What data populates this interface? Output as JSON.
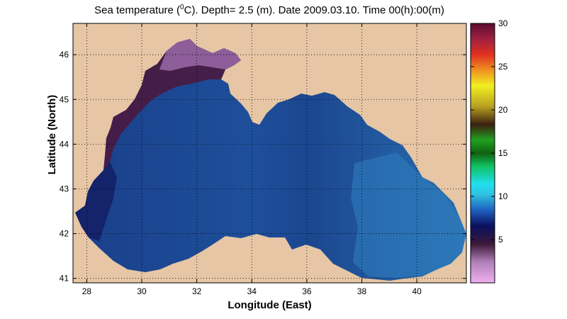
{
  "title": {
    "prefix": "Sea temperature (",
    "sup": "0",
    "suffix": "C). Depth=  2.5 (m). Date 2009.03.10. Time 00(h):00(m)"
  },
  "axes": {
    "xlabel": "Longitude (East)",
    "ylabel": "Latitude (North)",
    "x_ticks": [
      "28",
      "30",
      "32",
      "34",
      "36",
      "38",
      "40"
    ],
    "x_tick_values": [
      28,
      30,
      32,
      34,
      36,
      38,
      40
    ],
    "y_ticks": [
      "41",
      "42",
      "43",
      "44",
      "45",
      "46"
    ],
    "y_tick_values": [
      41,
      42,
      43,
      44,
      45,
      46
    ],
    "xlim": [
      27.5,
      41.8
    ],
    "ylim": [
      40.9,
      46.7
    ],
    "grid": "dotted"
  },
  "colorbar": {
    "ticks": [
      "5",
      "10",
      "15",
      "20",
      "25",
      "30"
    ],
    "tick_values": [
      5,
      10,
      15,
      20,
      25,
      30
    ],
    "range": [
      0,
      30
    ]
  },
  "colors": {
    "land": "#e6c6a4",
    "open_sea_dominant": "#1e4f9a",
    "nw_shelf_cold": "#5a2050"
  }
}
